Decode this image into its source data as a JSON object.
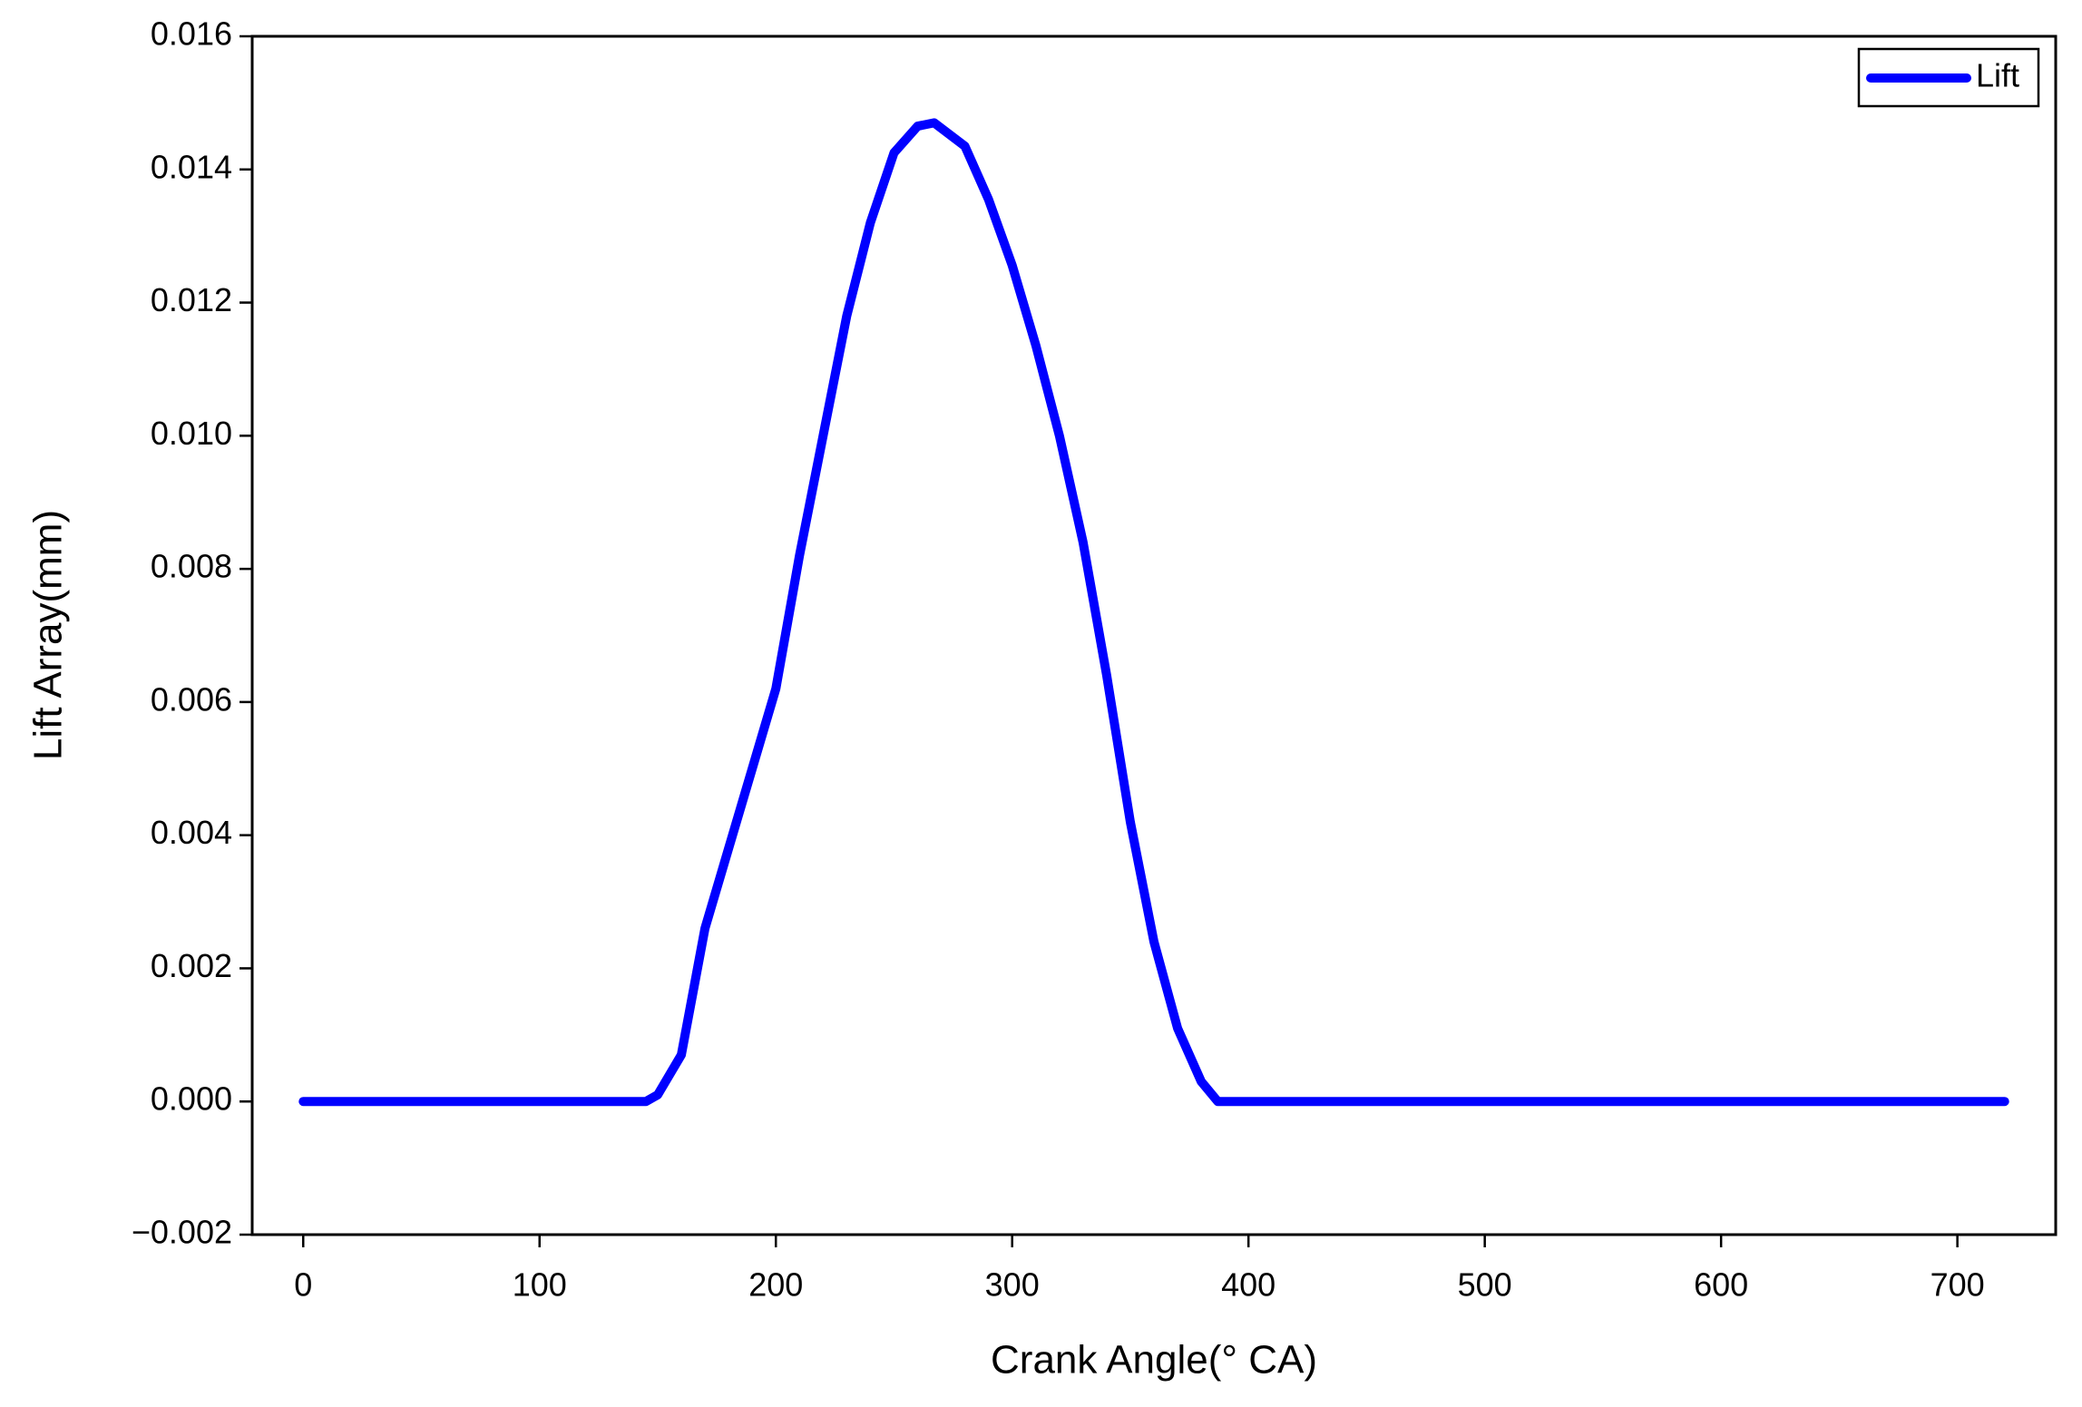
{
  "chart_data": {
    "type": "line",
    "x_label": "Crank Angle(° CA)",
    "y_label": "Lift Array(mm)",
    "x": [
      0,
      50,
      100,
      145,
      150,
      160,
      170,
      180,
      190,
      200,
      210,
      220,
      230,
      240,
      250,
      260,
      267,
      280,
      290,
      300,
      310,
      320,
      330,
      340,
      350,
      360,
      370,
      380,
      387,
      400,
      500,
      600,
      720
    ],
    "series": [
      {
        "name": "Lift",
        "color": "#0000ff",
        "values": [
          0,
          0,
          0,
          0,
          0.0001,
          0.0007,
          0.0026,
          0.0038,
          0.005,
          0.0062,
          0.0082,
          0.01,
          0.0118,
          0.0132,
          0.01425,
          0.01465,
          0.0147,
          0.01435,
          0.01355,
          0.01256,
          0.01136,
          0.01,
          0.0084,
          0.0064,
          0.0042,
          0.0024,
          0.0011,
          0.0003,
          0,
          0,
          0,
          0,
          0
        ]
      }
    ],
    "xlim": [
      -21.6,
      741.6
    ],
    "xticks": [
      0,
      100,
      200,
      300,
      400,
      500,
      600,
      700
    ],
    "ylim": [
      -0.002,
      0.016
    ],
    "yticks": [
      {
        "value": -0.002,
        "label": "−0.002"
      },
      {
        "value": 0,
        "label": "0.000"
      },
      0.002,
      0.004,
      0.006,
      0.008,
      {
        "value": 0.01,
        "label": "0.010"
      },
      0.012,
      0.014,
      0.016
    ],
    "legend": "upper right",
    "grid": false
  }
}
